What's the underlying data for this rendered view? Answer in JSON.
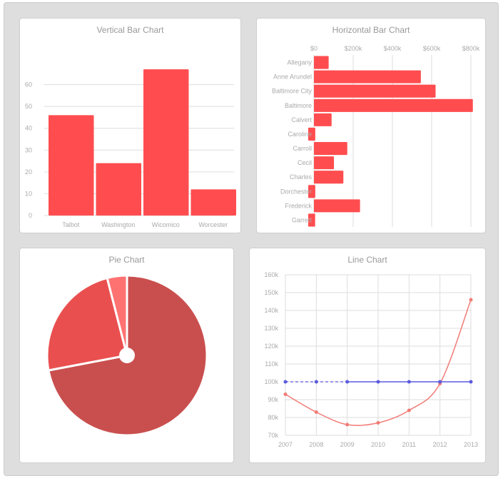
{
  "colors": {
    "bar": "#ff4d4f",
    "pie": [
      "#c94f4e",
      "#ea4f4f",
      "#ff7272"
    ],
    "line_red": "#f27b76",
    "line_blue": "#5a5ae0",
    "grid": "#dddddd",
    "axis_text": "#aaaaaa"
  },
  "chart_data": [
    {
      "type": "bar",
      "title": "Vertical Bar Chart",
      "categories": [
        "Talbot",
        "Washington",
        "Wicomico",
        "Worcester"
      ],
      "values": [
        46,
        24,
        67,
        12
      ],
      "yticks": [
        "0",
        "10",
        "20",
        "30",
        "40",
        "50",
        "60"
      ],
      "ylim": [
        0,
        70
      ],
      "grid": true
    },
    {
      "type": "bar",
      "orientation": "horizontal",
      "title": "Horizontal Bar Chart",
      "categories": [
        "Allegany",
        "Anne Arundel",
        "Baltimore City",
        "Baltimore",
        "Calvert",
        "Caroline",
        "Carroll",
        "Cecil",
        "Charles",
        "Dorchester",
        "Frederick",
        "Garrett"
      ],
      "values": [
        75000,
        545000,
        620000,
        810000,
        90000,
        33000,
        170000,
        102000,
        150000,
        33000,
        235000,
        30000
      ],
      "xticks": [
        "$0",
        "$200k",
        "$400k",
        "$600k",
        "$800k"
      ],
      "xlim": [
        0,
        800000
      ],
      "grid": true
    },
    {
      "type": "pie",
      "title": "Pie Chart",
      "values": [
        72,
        24,
        4
      ]
    },
    {
      "type": "line",
      "title": "Line Chart",
      "x": [
        "2007",
        "2008",
        "2009",
        "2010",
        "2011",
        "2012",
        "2013"
      ],
      "yticks": [
        "70k",
        "80k",
        "90k",
        "100k",
        "110k",
        "120k",
        "130k",
        "140k",
        "150k",
        "160k"
      ],
      "ylim": [
        70000,
        160000
      ],
      "series": [
        {
          "values": [
            93000,
            83000,
            76000,
            77000,
            84000,
            99000,
            146000
          ]
        },
        {
          "values": [
            100000,
            100000,
            100000,
            100000,
            100000,
            100000,
            100000
          ]
        }
      ],
      "grid": true
    }
  ]
}
